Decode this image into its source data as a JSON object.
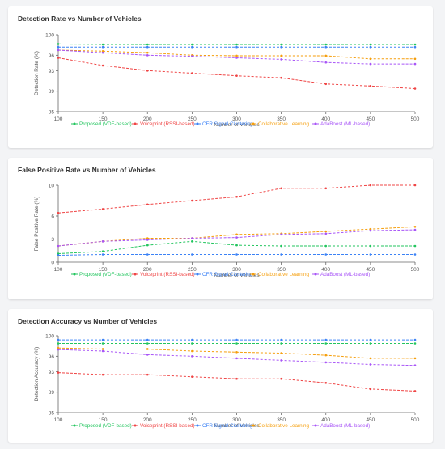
{
  "charts": [
    {
      "title": "Detection Rate vs Number of Vehicles",
      "ylabel": "Detection Rate (%)",
      "xlabel": "Number of Vehicles"
    },
    {
      "title": "False Positive Rate vs Number of Vehicles",
      "ylabel": "False Positive Rate (%)",
      "xlabel": "Number of Vehicles"
    },
    {
      "title": "Detection Accuracy vs Number of Vehicles",
      "ylabel": "Detection Accuracy (%)",
      "xlabel": "Number of Vehicles"
    }
  ],
  "colors": {
    "Proposed (VDF-based)": "#22c55e",
    "Voiceprint (RSSI-based)": "#ef4444",
    "CFR Signal Clustering": "#3b82f6",
    "Collaborative Learning": "#f59e0b",
    "AdaBoost (ML-based)": "#a855f7"
  },
  "chart_data": [
    {
      "type": "line",
      "title": "Detection Rate vs Number of Vehicles",
      "xlabel": "Number of Vehicles",
      "ylabel": "Detection Rate (%)",
      "x": [
        100,
        150,
        200,
        250,
        300,
        350,
        400,
        450,
        500
      ],
      "ylim": [
        85,
        100
      ],
      "yticks": [
        85,
        89,
        93,
        96,
        100
      ],
      "legend": "bottom",
      "grid": false,
      "series": [
        {
          "name": "Proposed (VDF-based)",
          "values": [
            98.2,
            98.1,
            98.1,
            98.1,
            98.1,
            98.1,
            98.1,
            98.1,
            98.1
          ]
        },
        {
          "name": "Voiceprint (RSSI-based)",
          "values": [
            95.5,
            94.0,
            93.0,
            92.5,
            92.0,
            91.6,
            90.4,
            90.0,
            89.5
          ]
        },
        {
          "name": "CFR Signal Clustering",
          "values": [
            97.6,
            97.6,
            97.6,
            97.6,
            97.6,
            97.6,
            97.6,
            97.6,
            97.6
          ]
        },
        {
          "name": "Collaborative Learning",
          "values": [
            97.0,
            96.8,
            96.5,
            96.0,
            95.9,
            95.9,
            95.9,
            95.3,
            95.3
          ]
        },
        {
          "name": "AdaBoost (ML-based)",
          "values": [
            97.0,
            96.5,
            96.0,
            95.8,
            95.5,
            95.2,
            94.6,
            94.3,
            94.3
          ]
        }
      ]
    },
    {
      "type": "line",
      "title": "False Positive Rate vs Number of Vehicles",
      "xlabel": "Number of Vehicles",
      "ylabel": "False Positive Rate (%)",
      "x": [
        100,
        150,
        200,
        250,
        300,
        350,
        400,
        450,
        500
      ],
      "ylim": [
        0,
        10
      ],
      "yticks": [
        0,
        3,
        6,
        10
      ],
      "legend": "bottom",
      "grid": false,
      "series": [
        {
          "name": "Proposed (VDF-based)",
          "values": [
            1.1,
            1.4,
            2.2,
            2.7,
            2.2,
            2.1,
            2.1,
            2.1,
            2.1
          ]
        },
        {
          "name": "Voiceprint (RSSI-based)",
          "values": [
            6.4,
            6.9,
            7.5,
            8.0,
            8.5,
            9.6,
            9.6,
            10.0,
            10.0
          ]
        },
        {
          "name": "CFR Signal Clustering",
          "values": [
            0.9,
            1.0,
            1.0,
            1.0,
            1.0,
            1.0,
            1.0,
            1.0,
            1.0
          ]
        },
        {
          "name": "Collaborative Learning",
          "values": [
            2.1,
            2.7,
            3.1,
            3.1,
            3.6,
            3.7,
            4.0,
            4.3,
            4.6
          ]
        },
        {
          "name": "AdaBoost (ML-based)",
          "values": [
            2.1,
            2.7,
            2.9,
            3.1,
            3.2,
            3.6,
            3.7,
            4.1,
            4.2
          ]
        }
      ]
    },
    {
      "type": "line",
      "title": "Detection Accuracy vs Number of Vehicles",
      "xlabel": "Number of Vehicles",
      "ylabel": "Detection Accuracy (%)",
      "x": [
        100,
        150,
        200,
        250,
        300,
        350,
        400,
        450,
        500
      ],
      "ylim": [
        85,
        100
      ],
      "yticks": [
        85,
        89,
        93,
        96,
        100
      ],
      "legend": "bottom",
      "grid": false,
      "series": [
        {
          "name": "Proposed (VDF-based)",
          "values": [
            98.5,
            98.5,
            98.5,
            98.5,
            98.5,
            98.5,
            98.5,
            98.5,
            98.5
          ]
        },
        {
          "name": "Voiceprint (RSSI-based)",
          "values": [
            92.8,
            92.4,
            92.4,
            92.0,
            91.6,
            91.6,
            90.8,
            89.6,
            89.2
          ]
        },
        {
          "name": "CFR Signal Clustering",
          "values": [
            99.2,
            99.2,
            99.2,
            99.2,
            99.2,
            99.2,
            99.2,
            99.2,
            99.2
          ]
        },
        {
          "name": "Collaborative Learning",
          "values": [
            97.6,
            97.4,
            97.4,
            97.0,
            96.8,
            96.6,
            96.2,
            95.6,
            95.6
          ]
        },
        {
          "name": "AdaBoost (ML-based)",
          "values": [
            97.3,
            97.0,
            96.3,
            96.0,
            95.6,
            95.2,
            94.8,
            94.4,
            94.2
          ]
        }
      ]
    }
  ]
}
